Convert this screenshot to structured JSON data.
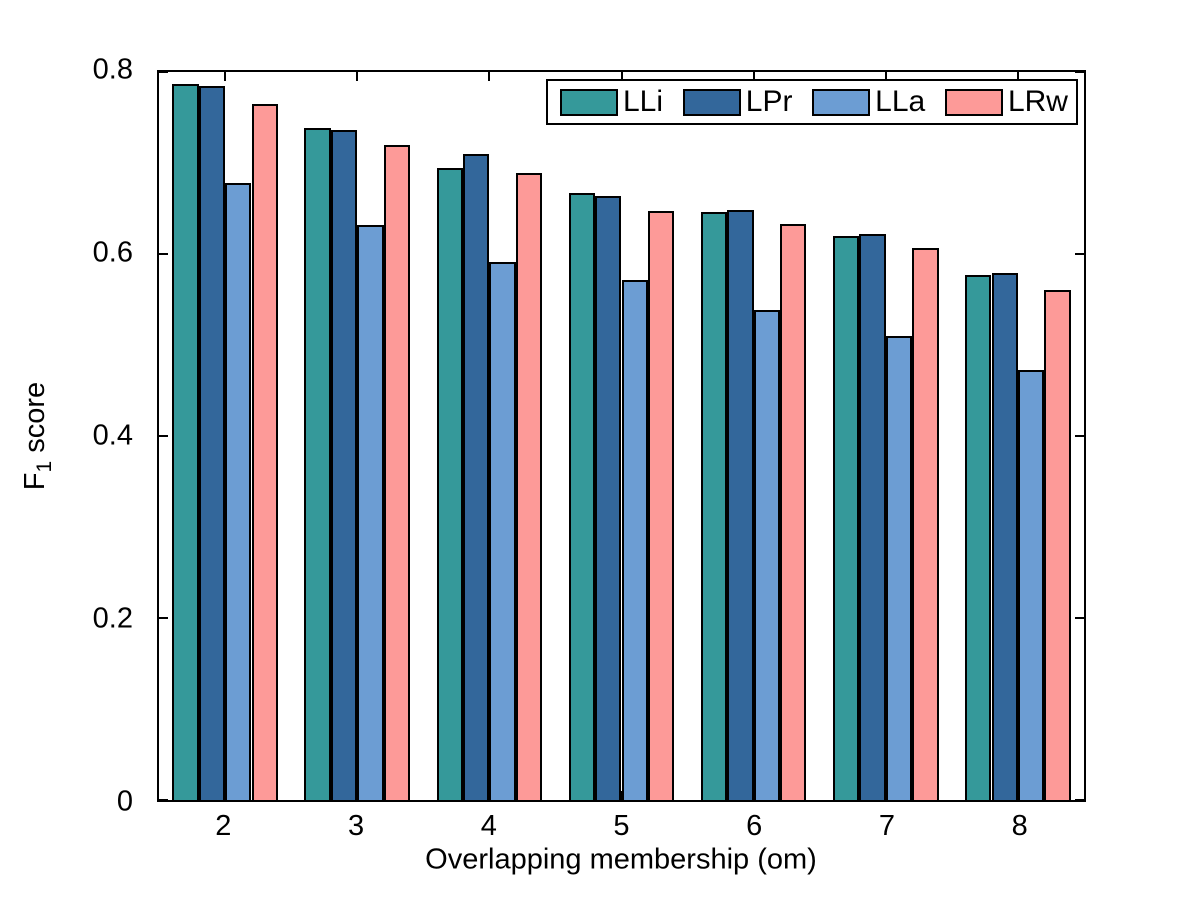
{
  "chart_data": {
    "type": "bar",
    "title": "",
    "xlabel": "Overlapping membership (om)",
    "ylabel": "F1 score",
    "ylabel_parts": {
      "main": "F",
      "sub": "1",
      "rest": " score"
    },
    "categories": [
      "2",
      "3",
      "4",
      "5",
      "6",
      "7",
      "8"
    ],
    "series": [
      {
        "name": "LLi",
        "color": "#35999A",
        "values": [
          0.787,
          0.738,
          0.695,
          0.667,
          0.646,
          0.62,
          0.577
        ]
      },
      {
        "name": "LPr",
        "color": "#33679B",
        "values": [
          0.785,
          0.736,
          0.71,
          0.664,
          0.648,
          0.622,
          0.579
        ]
      },
      {
        "name": "LLa",
        "color": "#6C9DD3",
        "values": [
          0.678,
          0.632,
          0.591,
          0.571,
          0.539,
          0.51,
          0.473
        ]
      },
      {
        "name": "LRw",
        "color": "#FD9A98",
        "values": [
          0.765,
          0.72,
          0.689,
          0.647,
          0.633,
          0.607,
          0.561
        ]
      }
    ],
    "ylim": [
      0,
      0.8
    ],
    "yticks": [
      0,
      0.2,
      0.4,
      0.6,
      0.8
    ],
    "ytick_labels": [
      "0",
      "0.2",
      "0.4",
      "0.6",
      "0.8"
    ],
    "bar_edge_color": "#000000",
    "background_color": "#ffffff",
    "legend_position": "top-right",
    "grid": false,
    "bar_group_width_fraction": 0.8
  }
}
